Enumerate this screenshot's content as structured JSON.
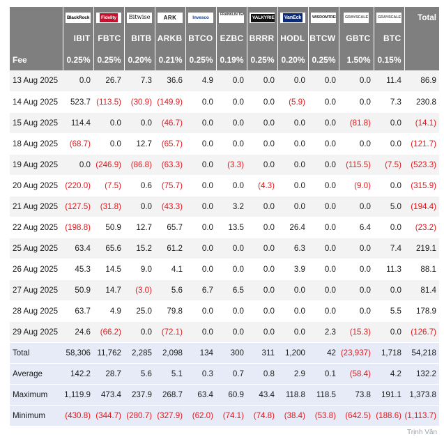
{
  "header": {
    "total_label": "Total",
    "fee_label": "Fee",
    "logos": [
      {
        "name": "blackrock",
        "text": "BlackRock"
      },
      {
        "name": "fidelity",
        "text": "Fidelity"
      },
      {
        "name": "bitwise",
        "text": "Bitwise"
      },
      {
        "name": "ark",
        "text": "ARK"
      },
      {
        "name": "invesco",
        "text": "Invesco"
      },
      {
        "name": "franklin",
        "text": "FRANKLIN TEMPLETON"
      },
      {
        "name": "valkyrie",
        "text": "VALKYRIE"
      },
      {
        "name": "vaneck",
        "text": "VanEck"
      },
      {
        "name": "wisdomtree",
        "text": "WISDOMTREE"
      },
      {
        "name": "grayscale-gbtc",
        "text": "GRAYSCALE"
      },
      {
        "name": "grayscale-btc",
        "text": "GRAYSCALE"
      }
    ],
    "tickers": [
      "IBIT",
      "FBTC",
      "BITB",
      "ARKB",
      "BTCO",
      "EZBC",
      "BRRR",
      "HODL",
      "BTCW",
      "GBTC",
      "BTC"
    ],
    "fees": [
      "0.25%",
      "0.25%",
      "0.20%",
      "0.21%",
      "0.25%",
      "0.19%",
      "0.25%",
      "0.20%",
      "0.25%",
      "1.50%",
      "0.15%"
    ]
  },
  "rows": [
    {
      "date": "13 Aug 2025",
      "values": [
        "0.0",
        "26.7",
        "7.3",
        "36.6",
        "4.9",
        "0.0",
        "0.0",
        "0.0",
        "0.0",
        "0.0",
        "11.4"
      ],
      "total": "86.9"
    },
    {
      "date": "14 Aug 2025",
      "values": [
        "523.7",
        "(113.5)",
        "(30.9)",
        "(149.9)",
        "0.0",
        "0.0",
        "0.0",
        "(5.9)",
        "0.0",
        "0.0",
        "7.3"
      ],
      "total": "230.8"
    },
    {
      "date": "15 Aug 2025",
      "values": [
        "114.4",
        "0.0",
        "0.0",
        "(46.7)",
        "0.0",
        "0.0",
        "0.0",
        "0.0",
        "0.0",
        "(81.8)",
        "0.0"
      ],
      "total": "(14.1)"
    },
    {
      "date": "18 Aug 2025",
      "values": [
        "(68.7)",
        "0.0",
        "12.7",
        "(65.7)",
        "0.0",
        "0.0",
        "0.0",
        "0.0",
        "0.0",
        "0.0",
        "0.0"
      ],
      "total": "(121.7)"
    },
    {
      "date": "19 Aug 2025",
      "values": [
        "0.0",
        "(246.9)",
        "(86.8)",
        "(63.3)",
        "0.0",
        "(3.3)",
        "0.0",
        "0.0",
        "0.0",
        "(115.5)",
        "(7.5)"
      ],
      "total": "(523.3)"
    },
    {
      "date": "20 Aug 2025",
      "values": [
        "(220.0)",
        "(7.5)",
        "0.6",
        "(75.7)",
        "0.0",
        "0.0",
        "(4.3)",
        "0.0",
        "0.0",
        "(9.0)",
        "0.0"
      ],
      "total": "(315.9)"
    },
    {
      "date": "21 Aug 2025",
      "values": [
        "(127.5)",
        "(31.8)",
        "0.0",
        "(43.3)",
        "0.0",
        "3.2",
        "0.0",
        "0.0",
        "0.0",
        "0.0",
        "5.0"
      ],
      "total": "(194.4)"
    },
    {
      "date": "22 Aug 2025",
      "values": [
        "(198.8)",
        "50.9",
        "12.7",
        "65.7",
        "0.0",
        "13.5",
        "0.0",
        "26.4",
        "0.0",
        "6.4",
        "0.0"
      ],
      "total": "(23.2)"
    },
    {
      "date": "25 Aug 2025",
      "values": [
        "63.4",
        "65.6",
        "15.2",
        "61.2",
        "0.0",
        "0.0",
        "0.0",
        "6.3",
        "0.0",
        "0.0",
        "7.4"
      ],
      "total": "219.1"
    },
    {
      "date": "26 Aug 2025",
      "values": [
        "45.3",
        "14.5",
        "9.0",
        "4.1",
        "0.0",
        "0.0",
        "0.0",
        "3.9",
        "0.0",
        "0.0",
        "11.3"
      ],
      "total": "88.1"
    },
    {
      "date": "27 Aug 2025",
      "values": [
        "50.9",
        "14.7",
        "(3.0)",
        "5.6",
        "6.7",
        "6.5",
        "0.0",
        "0.0",
        "0.0",
        "0.0",
        "0.0"
      ],
      "total": "81.4"
    },
    {
      "date": "28 Aug 2025",
      "values": [
        "63.7",
        "4.9",
        "25.0",
        "79.8",
        "0.0",
        "0.0",
        "0.0",
        "0.0",
        "0.0",
        "0.0",
        "5.5"
      ],
      "total": "178.9"
    },
    {
      "date": "29 Aug 2025",
      "values": [
        "24.6",
        "(66.2)",
        "0.0",
        "(72.1)",
        "0.0",
        "0.0",
        "0.0",
        "0.0",
        "2.3",
        "(15.3)",
        "0.0"
      ],
      "total": "(126.7)"
    }
  ],
  "summary": [
    {
      "label": "Total",
      "values": [
        "58,306",
        "11,762",
        "2,285",
        "2,098",
        "134",
        "300",
        "311",
        "1,200",
        "42",
        "(23,937)",
        "1,718"
      ],
      "total": "54,218"
    },
    {
      "label": "Average",
      "values": [
        "142.2",
        "28.7",
        "5.6",
        "5.1",
        "0.3",
        "0.7",
        "0.8",
        "2.9",
        "0.1",
        "(58.4)",
        "4.2"
      ],
      "total": "132.2"
    },
    {
      "label": "Maximum",
      "values": [
        "1,119.9",
        "473.4",
        "237.9",
        "268.7",
        "63.4",
        "60.9",
        "43.4",
        "118.8",
        "118.5",
        "73.8",
        "191.1"
      ],
      "total": "1,373.8"
    },
    {
      "label": "Minimum",
      "values": [
        "(430.8)",
        "(344.7)",
        "(280.7)",
        "(327.9)",
        "(62.0)",
        "(74.1)",
        "(74.8)",
        "(38.4)",
        "(53.8)",
        "(642.5)",
        "(188.6)"
      ],
      "total": "(1,113.7)"
    }
  ],
  "watermark": "Trịnh Văn",
  "colors": {
    "header_bg": "#7f7f7f",
    "negative": "#e0191e",
    "summary_bg": "#e6ebf7",
    "stripe": "#f3f3f3"
  }
}
